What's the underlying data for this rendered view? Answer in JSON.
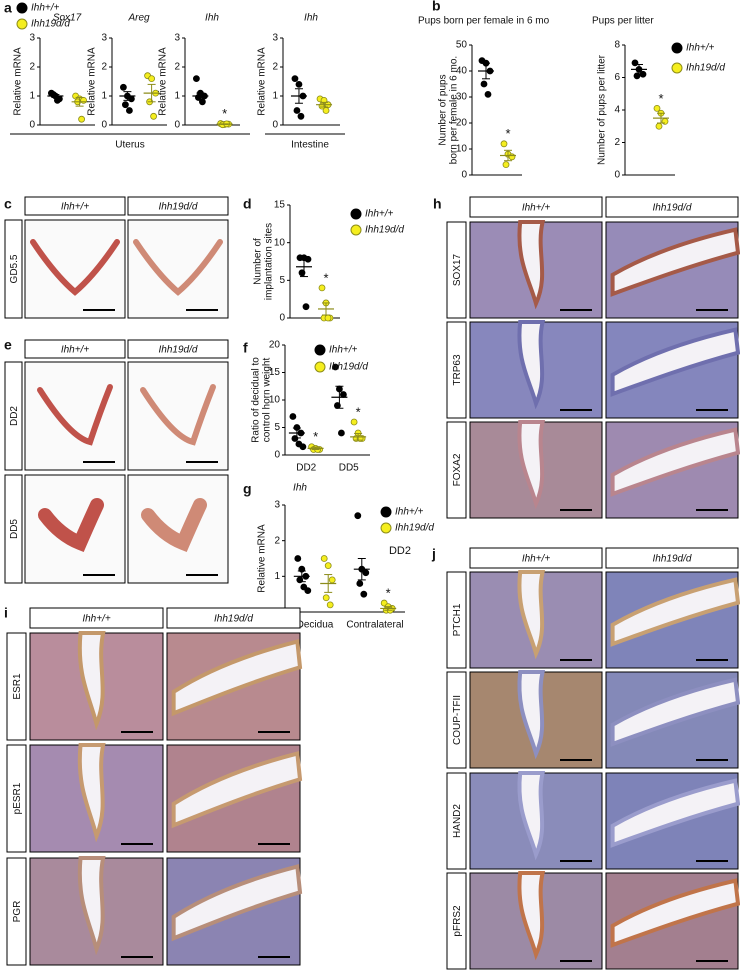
{
  "figure": {
    "groups": [
      {
        "name": "Ihh+/+",
        "color": "#000000",
        "edge": "#000000"
      },
      {
        "name": "Ihh19d/d",
        "color": "#f5ee1e",
        "edge": "#8c8c1a"
      }
    ],
    "chart_letters": {
      "a": "a",
      "b": "b",
      "d": "d",
      "f": "f",
      "g": "g"
    },
    "image_panels": [
      {
        "letter": "c",
        "rows": [
          "GD5.5"
        ]
      },
      {
        "letter": "e",
        "rows": [
          "DD2",
          "DD5"
        ]
      },
      {
        "letter": "h",
        "rows": [
          "SOX17",
          "TRP63",
          "FOXA2"
        ]
      },
      {
        "letter": "i",
        "rows": [
          "ESR1",
          "pESR1",
          "PGR"
        ]
      },
      {
        "letter": "j",
        "rows": [
          "PTCH1",
          "COUP-TFII",
          "HAND2",
          "pFRS2"
        ]
      }
    ]
  },
  "chart_data": [
    {
      "type": "dot",
      "title": "Sox17",
      "ylabel": "Relative mRNA",
      "ylim": [
        0,
        3
      ],
      "yticks": [
        0,
        1,
        2,
        3
      ],
      "categories": [
        null
      ],
      "legend": true,
      "series": [
        {
          "values": [
            [
              1.1,
              1.0,
              0.9,
              1.05,
              0.85
            ]
          ],
          "means": [
            1.0
          ],
          "sems": [
            0.05
          ]
        },
        {
          "values": [
            [
              1.0,
              0.9,
              0.85,
              0.8,
              0.2
            ]
          ],
          "means": [
            0.8
          ],
          "sems": [
            0.15
          ]
        }
      ]
    },
    {
      "type": "dot",
      "title": "Areg",
      "ylabel": "Relative mRNA",
      "ylim": [
        0,
        3
      ],
      "yticks": [
        0,
        1,
        2,
        3
      ],
      "categories": [
        null
      ],
      "xlabel": "Uterus",
      "series": [
        {
          "values": [
            [
              1.3,
              1.0,
              0.9,
              0.7,
              0.5
            ]
          ],
          "means": [
            1.0
          ],
          "sems": [
            0.15
          ]
        },
        {
          "values": [
            [
              1.7,
              1.6,
              1.1,
              0.8,
              0.3
            ]
          ],
          "means": [
            1.1
          ],
          "sems": [
            0.3
          ]
        }
      ]
    },
    {
      "type": "dot",
      "title": "Ihh",
      "ylabel": "Relative mRNA",
      "ylim": [
        0,
        3
      ],
      "yticks": [
        0,
        1,
        2,
        3
      ],
      "categories": [
        null
      ],
      "series": [
        {
          "values": [
            [
              1.6,
              1.1,
              1.0,
              0.95,
              0.8
            ]
          ],
          "means": [
            1.0
          ],
          "sems": [
            0.1
          ]
        },
        {
          "values": [
            [
              0.05,
              0.02,
              0.03,
              0.01,
              0.04
            ]
          ],
          "means": [
            0.03
          ],
          "sems": [
            0.01
          ]
        }
      ],
      "annotations": [
        {
          "text": "*",
          "category": 0,
          "series": 1
        }
      ]
    },
    {
      "type": "dot",
      "title": "Ihh",
      "ylabel": "Relative mRNA",
      "ylim": [
        0,
        3
      ],
      "yticks": [
        0,
        1,
        2,
        3
      ],
      "categories": [
        null
      ],
      "xlabel": "Intestine",
      "series": [
        {
          "values": [
            [
              1.6,
              1.4,
              1.0,
              0.5,
              0.3
            ]
          ],
          "means": [
            1.0
          ],
          "sems": [
            0.25
          ]
        },
        {
          "values": [
            [
              0.9,
              0.85,
              0.7,
              0.65,
              0.5
            ]
          ],
          "means": [
            0.7
          ],
          "sems": [
            0.08
          ]
        }
      ]
    },
    {
      "type": "dot",
      "title": "Pups born per female in 6 mo",
      "ylabel": [
        "Number of pups",
        "born per female in 6 mo."
      ],
      "ylim": [
        0,
        50
      ],
      "yticks": [
        0,
        10,
        20,
        30,
        40,
        50
      ],
      "categories": [
        null
      ],
      "series": [
        {
          "values": [
            [
              44,
              43,
              40,
              35,
              31
            ]
          ],
          "means": [
            40
          ],
          "sems": [
            3
          ]
        },
        {
          "values": [
            [
              12,
              8,
              7,
              4
            ]
          ],
          "means": [
            7.5
          ],
          "sems": [
            2
          ]
        }
      ],
      "annotations": [
        {
          "text": "*",
          "category": 0,
          "series": 1
        }
      ]
    },
    {
      "type": "dot",
      "title": "Pups per litter",
      "ylabel": "Number of pups per litter",
      "ylim": [
        0,
        8
      ],
      "yticks": [
        0,
        2,
        4,
        6,
        8
      ],
      "categories": [
        null
      ],
      "legend": true,
      "series": [
        {
          "values": [
            [
              6.9,
              6.5,
              6.2,
              6.1
            ]
          ],
          "means": [
            6.5
          ],
          "sems": [
            0.3
          ]
        },
        {
          "values": [
            [
              4.1,
              3.8,
              3.3,
              3.0
            ]
          ],
          "means": [
            3.5
          ],
          "sems": [
            0.3
          ]
        }
      ],
      "annotations": [
        {
          "text": "*",
          "category": 0,
          "series": 1
        }
      ]
    },
    {
      "type": "dot",
      "ylabel": [
        "Number of",
        "implantation sites"
      ],
      "ylim": [
        0,
        15
      ],
      "yticks": [
        0,
        5,
        10,
        15
      ],
      "categories": [
        null
      ],
      "legend": true,
      "series": [
        {
          "values": [
            [
              8,
              8,
              7.8,
              6,
              1.5
            ]
          ],
          "means": [
            6.8
          ],
          "sems": [
            1.3
          ]
        },
        {
          "values": [
            [
              4,
              2,
              0,
              0,
              0
            ]
          ],
          "means": [
            1.2
          ],
          "sems": [
            0.8
          ]
        }
      ],
      "annotations": [
        {
          "text": "*",
          "category": 0,
          "series": 1
        }
      ]
    },
    {
      "type": "dot",
      "ylabel": [
        "Ratio of decidual to",
        "control horn weight"
      ],
      "ylim": [
        0,
        20
      ],
      "yticks": [
        0,
        5,
        10,
        15,
        20
      ],
      "categories": [
        "DD2",
        "DD5"
      ],
      "legend": true,
      "series": [
        {
          "values": [
            [
              7,
              5,
              4,
              3,
              2,
              1.5
            ],
            [
              16,
              12,
              11,
              9,
              4
            ]
          ],
          "means": [
            4,
            10.5
          ],
          "sems": [
            0.9,
            2
          ]
        },
        {
          "values": [
            [
              1.5,
              1.2,
              1,
              1,
              1
            ],
            [
              6,
              4,
              3,
              3,
              3
            ]
          ],
          "means": [
            1.2,
            3.3
          ],
          "sems": [
            0.2,
            0.6
          ]
        }
      ],
      "annotations": [
        {
          "text": "*",
          "category": 0,
          "series": 1
        },
        {
          "text": "*",
          "category": 1,
          "series": 1
        }
      ]
    },
    {
      "type": "dot",
      "title": "Ihh",
      "ylabel": "Relative mRNA",
      "ylim": [
        0,
        3
      ],
      "yticks": [
        0,
        1,
        2,
        3
      ],
      "categories": [
        "Decidua",
        "Contralateral"
      ],
      "legend": true,
      "note": "DD2",
      "series": [
        {
          "values": [
            [
              1.5,
              1.2,
              1.0,
              0.9,
              0.7,
              0.6
            ],
            [
              2.7,
              1.2,
              1.1,
              0.8,
              0.5
            ]
          ],
          "means": [
            1.0,
            1.2
          ],
          "sems": [
            0.15,
            0.3
          ]
        },
        {
          "values": [
            [
              1.5,
              1.3,
              0.9,
              0.4,
              0.2
            ],
            [
              0.25,
              0.15,
              0.1,
              0.05,
              0.05
            ]
          ],
          "means": [
            0.8,
            0.1
          ],
          "sems": [
            0.25,
            0.05
          ]
        }
      ],
      "annotations": [
        {
          "text": "*",
          "category": 1,
          "series": 1
        }
      ]
    }
  ]
}
